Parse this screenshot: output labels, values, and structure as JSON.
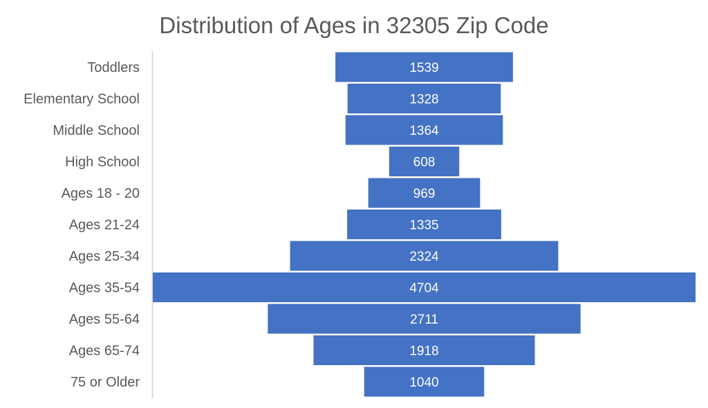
{
  "chart_data": {
    "type": "funnel",
    "title": "Distribution of Ages in 32305 Zip Code",
    "categories": [
      "Toddlers",
      "Elementary School",
      "Middle School",
      "High School",
      "Ages 18 - 20",
      "Ages 21-24",
      "Ages 25-34",
      "Ages 35-54",
      "Ages 55-64",
      "Ages 65-74",
      "75 or Older"
    ],
    "values": [
      1539,
      1328,
      1364,
      608,
      969,
      1335,
      2324,
      4704,
      2711,
      1918,
      1040
    ],
    "data_labels": true,
    "grid": false,
    "legend": "none",
    "colors": {
      "bar": "#4472C4",
      "label": "#ffffff",
      "category": "#595959",
      "axis": "#d9d9d9",
      "title": "#595959"
    }
  }
}
